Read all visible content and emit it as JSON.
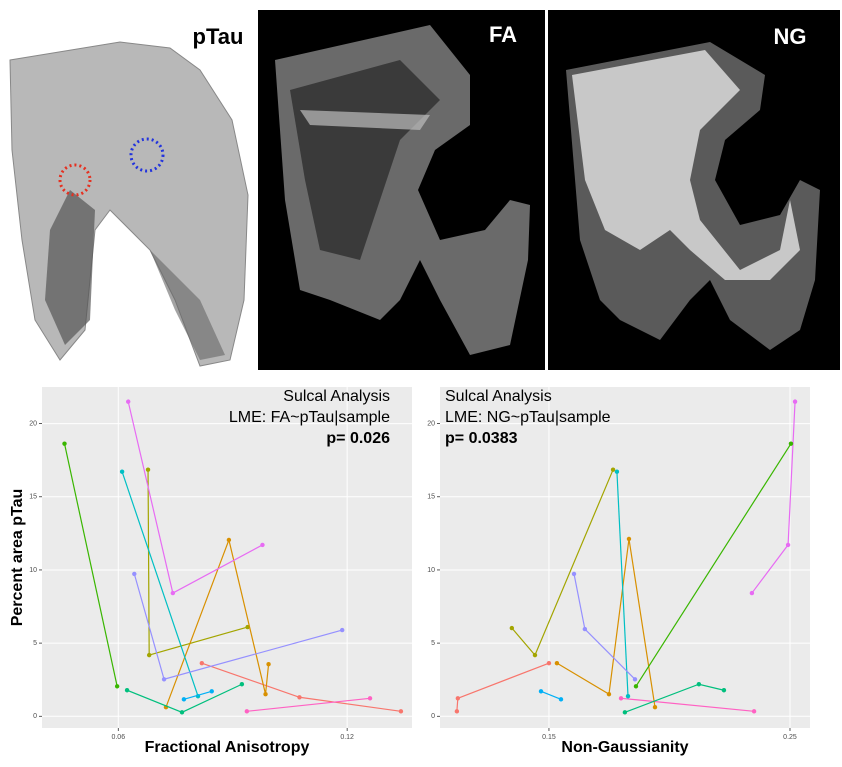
{
  "panels": [
    "pTau",
    "FA",
    "NG"
  ],
  "chart_data": [
    {
      "type": "line",
      "annotations": [
        "Sulcal Analysis",
        "LME: FA~pTau|sample",
        "p= 0.026"
      ],
      "x_label": "Fractional Anisotropy",
      "y_label": "Percent area pTau",
      "xlim": [
        0.04,
        0.137
      ],
      "ylim": [
        -0.8,
        22.5
      ],
      "xticks": [
        0.06,
        0.12
      ],
      "yticks": [
        0,
        5,
        10,
        15,
        20
      ],
      "grid": true,
      "series": [
        {
          "color": "#F8766D",
          "x": [
            0.0819,
            0.1075,
            0.1341
          ],
          "values": [
            3.63,
            1.3,
            0.34
          ]
        },
        {
          "color": "#FF61C3",
          "x": [
            0.0937,
            0.126
          ],
          "values": [
            0.34,
            1.23
          ]
        },
        {
          "color": "#A3A500",
          "x": [
            0.0678,
            0.0681,
            0.0939
          ],
          "values": [
            16.85,
            4.18,
            6.1
          ]
        },
        {
          "color": "#D89000",
          "x": [
            0.0725,
            0.089,
            0.0986,
            0.0994
          ],
          "values": [
            0.62,
            12.05,
            1.51,
            3.56
          ]
        },
        {
          "color": "#00BFC4",
          "x": [
            0.061,
            0.0809
          ],
          "values": [
            16.71,
            1.37
          ]
        },
        {
          "color": "#00B0F6",
          "x": [
            0.0772,
            0.0845
          ],
          "values": [
            1.16,
            1.71
          ]
        },
        {
          "color": "#9590FF",
          "x": [
            0.0642,
            0.072,
            0.1187
          ],
          "values": [
            9.73,
            2.53,
            5.89
          ]
        },
        {
          "color": "#E76BF3",
          "x": [
            0.0626,
            0.0743,
            0.0978
          ],
          "values": [
            21.5,
            8.42,
            11.71
          ]
        },
        {
          "color": "#39B600",
          "x": [
            0.0459,
            0.0597
          ],
          "values": [
            18.63,
            2.05
          ]
        },
        {
          "color": "#00BF7D",
          "x": [
            0.0623,
            0.0767,
            0.0924
          ],
          "values": [
            1.78,
            0.27,
            2.19
          ]
        }
      ]
    },
    {
      "type": "line",
      "annotations": [
        "Sulcal Analysis",
        "LME: NG~pTau|sample",
        "p= 0.0383"
      ],
      "x_label": "Non-Gaussianity",
      "xlim": [
        0.1048,
        0.2583
      ],
      "ylim": [
        -0.8,
        22.5
      ],
      "xticks": [
        0.15,
        0.25
      ],
      "yticks": [
        0,
        5,
        10,
        15,
        20
      ],
      "grid": true,
      "series": [
        {
          "color": "#F8766D",
          "x": [
            0.1118,
            0.1122,
            0.15
          ],
          "values": [
            0.34,
            1.23,
            3.63
          ]
        },
        {
          "color": "#FF61C3",
          "x": [
            0.1799,
            0.2351
          ],
          "values": [
            1.23,
            0.34
          ]
        },
        {
          "color": "#A3A500",
          "x": [
            0.1346,
            0.1442,
            0.1766
          ],
          "values": [
            6.03,
            4.18,
            16.85
          ]
        },
        {
          "color": "#D89000",
          "x": [
            0.1533,
            0.1749,
            0.1832,
            0.194
          ],
          "values": [
            3.63,
            1.51,
            12.12,
            0.62
          ]
        },
        {
          "color": "#00BFC4",
          "x": [
            0.1782,
            0.1828
          ],
          "values": [
            16.71,
            1.37
          ]
        },
        {
          "color": "#00B0F6",
          "x": [
            0.1467,
            0.155
          ],
          "values": [
            1.71,
            1.16
          ]
        },
        {
          "color": "#9590FF",
          "x": [
            0.1604,
            0.1649,
            0.1857
          ],
          "values": [
            9.73,
            5.96,
            2.53
          ]
        },
        {
          "color": "#E76BF3",
          "x": [
            0.2342,
            0.2492,
            0.2521
          ],
          "values": [
            8.42,
            11.71,
            21.5
          ]
        },
        {
          "color": "#39B600",
          "x": [
            0.1861,
            0.2504
          ],
          "values": [
            2.05,
            18.63
          ]
        },
        {
          "color": "#00BF7D",
          "x": [
            0.1815,
            0.2122,
            0.2226
          ],
          "values": [
            0.27,
            2.19,
            1.78
          ]
        }
      ]
    }
  ]
}
